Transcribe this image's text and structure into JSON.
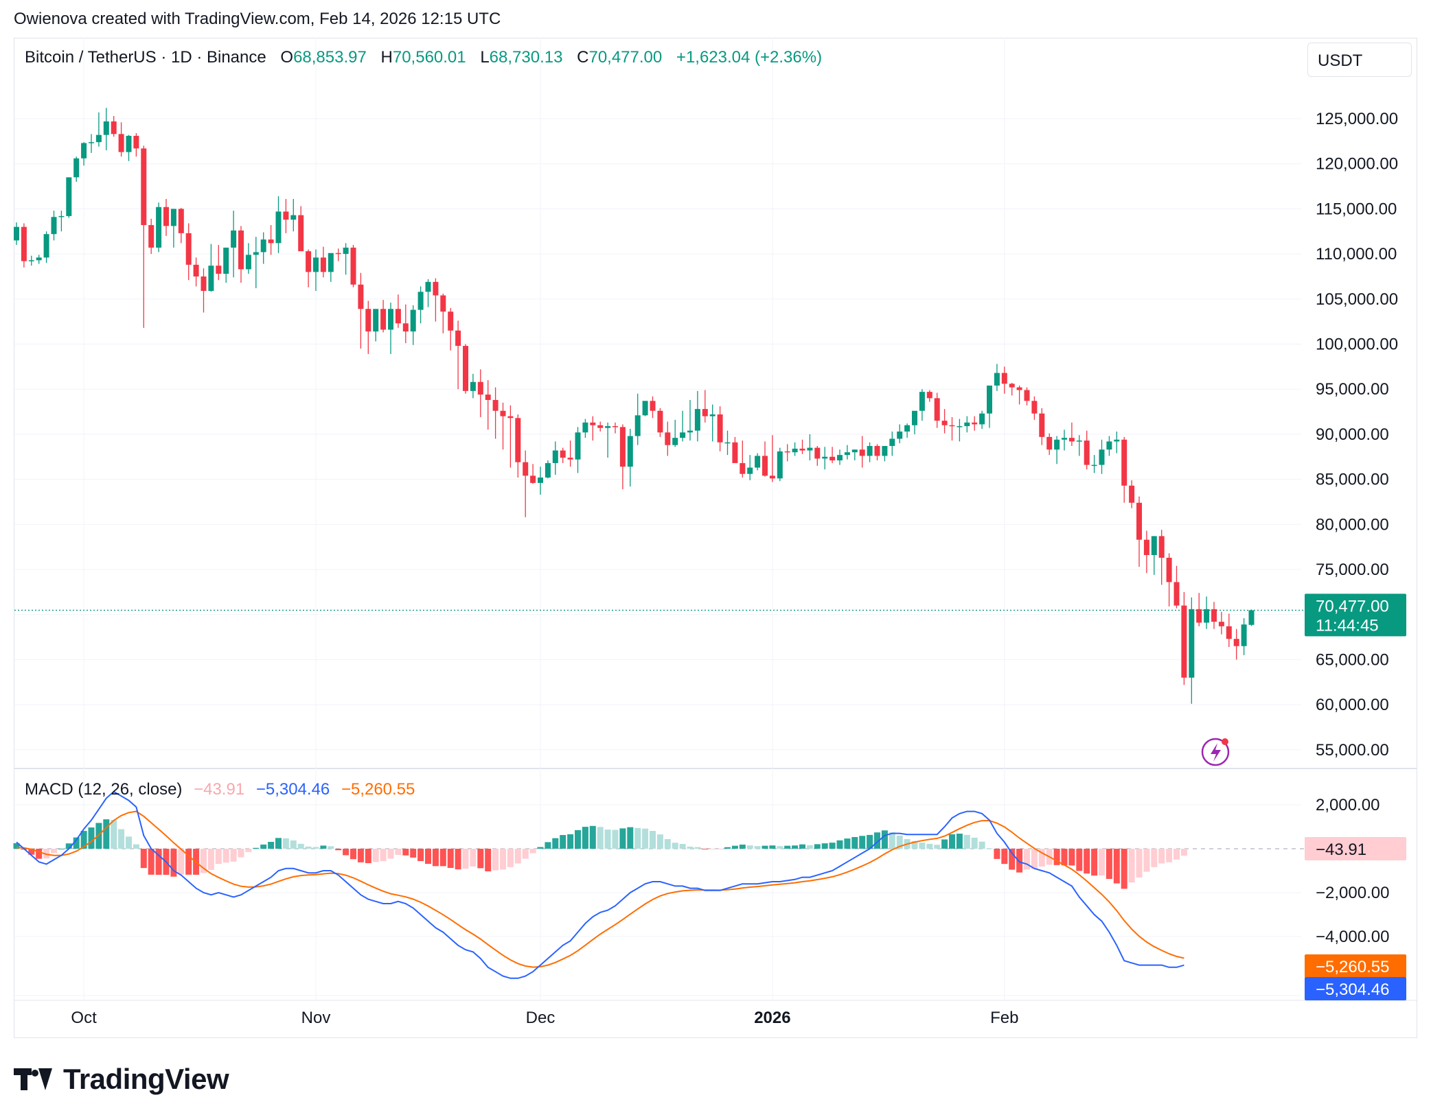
{
  "header": {
    "credit": "Owienova created with TradingView.com, Feb 14, 2026 12:15 UTC"
  },
  "legend": {
    "symbol": "Bitcoin / TetherUS · 1D · Binance",
    "open_label": "O",
    "open": "68,853.97",
    "high_label": "H",
    "high": "70,560.01",
    "low_label": "L",
    "low": "68,730.13",
    "close_label": "C",
    "close": "70,477.00",
    "change": "+1,623.04 (+2.36%)"
  },
  "currency": "USDT",
  "price_badge": {
    "price": "70,477.00",
    "countdown": "11:44:45"
  },
  "macd_legend": {
    "name": "MACD (12, 26, close)",
    "hist": "−43.91",
    "macd": "−5,304.46",
    "signal": "−5,260.55"
  },
  "macd_badges": {
    "hist": "−43.91",
    "signal": "−5,260.55",
    "macd": "−5,304.46"
  },
  "footer": {
    "brand": "TradingView"
  },
  "colors": {
    "up": "#089981",
    "down": "#f23645",
    "macd": "#2962ff",
    "signal": "#ff6d00",
    "hist_up_strong": "#26a69a",
    "hist_up_weak": "#b2dfdb",
    "hist_down_strong": "#ff5252",
    "hist_down_weak": "#ffcdd2"
  },
  "chart_data": [
    {
      "type": "candlestick",
      "title": "Bitcoin / TetherUS · 1D · Binance",
      "x_ticks": [
        "Oct",
        "Nov",
        "Dec",
        "2026",
        "Feb"
      ],
      "y_ticks": [
        "125,000.00",
        "120,000.00",
        "115,000.00",
        "110,000.00",
        "105,000.00",
        "100,000.00",
        "95,000.00",
        "90,000.00",
        "85,000.00",
        "80,000.00",
        "75,000.00",
        "70,000.00",
        "65,000.00",
        "60,000.00",
        "55,000.00"
      ],
      "ylim": [
        55000,
        125000
      ],
      "last_price": 70477,
      "start_date": "2025-09-22",
      "grid": true,
      "candles_ohlc": [
        [
          111500,
          113500,
          111000,
          113000
        ],
        [
          113000,
          113400,
          108500,
          109200
        ],
        [
          109200,
          109800,
          108700,
          109300
        ],
        [
          109300,
          109900,
          108900,
          109600
        ],
        [
          109600,
          112500,
          109000,
          112200
        ],
        [
          112200,
          114800,
          111500,
          114100
        ],
        [
          114100,
          114800,
          112500,
          114200
        ],
        [
          114200,
          118500,
          114000,
          118500
        ],
        [
          118500,
          120800,
          118000,
          120600
        ],
        [
          120600,
          122400,
          119800,
          122300
        ],
        [
          122300,
          123300,
          121200,
          122400
        ],
        [
          122400,
          125700,
          121900,
          123200
        ],
        [
          123200,
          126200,
          121500,
          124700
        ],
        [
          124700,
          125300,
          123000,
          123300
        ],
        [
          123300,
          124600,
          120800,
          121300
        ],
        [
          121300,
          123200,
          120300,
          123100
        ],
        [
          123100,
          123400,
          120800,
          121700
        ],
        [
          121700,
          122000,
          101800,
          113200
        ],
        [
          113200,
          113900,
          110000,
          110700
        ],
        [
          110700,
          115700,
          110200,
          115200
        ],
        [
          115200,
          116100,
          112000,
          113100
        ],
        [
          113100,
          115000,
          110700,
          115000
        ],
        [
          115000,
          115100,
          111200,
          112300
        ],
        [
          112300,
          113400,
          107100,
          108800
        ],
        [
          108800,
          109600,
          106400,
          107500
        ],
        [
          107500,
          108400,
          103500,
          105900
        ],
        [
          105900,
          111100,
          105800,
          108700
        ],
        [
          108700,
          111000,
          107100,
          107800
        ],
        [
          107800,
          109500,
          106800,
          110700
        ],
        [
          110700,
          114800,
          107400,
          112600
        ],
        [
          112600,
          113100,
          106800,
          108300
        ],
        [
          108300,
          111200,
          107800,
          109900
        ],
        [
          109900,
          111900,
          106200,
          110200
        ],
        [
          110200,
          112400,
          108900,
          111600
        ],
        [
          111600,
          113200,
          109900,
          111200
        ],
        [
          111200,
          116400,
          110100,
          114700
        ],
        [
          114700,
          116100,
          112300,
          113800
        ],
        [
          113800,
          116100,
          112500,
          114300
        ],
        [
          114300,
          115300,
          110600,
          110300
        ],
        [
          110300,
          110500,
          106300,
          108000
        ],
        [
          108000,
          110500,
          105900,
          109600
        ],
        [
          109600,
          110800,
          107400,
          108000
        ],
        [
          108000,
          109700,
          106900,
          110100
        ],
        [
          110100,
          110600,
          109200,
          110000
        ],
        [
          110000,
          111200,
          107700,
          110700
        ],
        [
          110700,
          111000,
          106300,
          106600
        ],
        [
          106600,
          107900,
          99500,
          103900
        ],
        [
          103900,
          104800,
          98900,
          101400
        ],
        [
          101400,
          103500,
          100300,
          103900
        ],
        [
          103900,
          104900,
          101300,
          101600
        ],
        [
          101600,
          104600,
          98900,
          103900
        ],
        [
          103900,
          105500,
          101800,
          102300
        ],
        [
          102300,
          104400,
          100100,
          101400
        ],
        [
          101400,
          104300,
          99900,
          103800
        ],
        [
          103800,
          106400,
          102300,
          105800
        ],
        [
          105800,
          107200,
          104100,
          106900
        ],
        [
          106900,
          107300,
          102500,
          105400
        ],
        [
          105400,
          105600,
          101200,
          103600
        ],
        [
          103600,
          104000,
          99300,
          101500
        ],
        [
          101500,
          102600,
          95000,
          99800
        ],
        [
          99800,
          100000,
          94500,
          94800
        ],
        [
          94800,
          96700,
          94000,
          95800
        ],
        [
          95800,
          97200,
          91900,
          94400
        ],
        [
          94400,
          96000,
          90500,
          93800
        ],
        [
          93800,
          95200,
          89500,
          92600
        ],
        [
          92600,
          93500,
          88300,
          92000
        ],
        [
          92000,
          93200,
          86300,
          91800
        ],
        [
          91800,
          92200,
          85200,
          86900
        ],
        [
          86900,
          88200,
          80800,
          85400
        ],
        [
          85400,
          86700,
          84500,
          84600
        ],
        [
          84600,
          86400,
          83300,
          85200
        ],
        [
          85200,
          87100,
          85100,
          86800
        ],
        [
          86800,
          89200,
          85500,
          88200
        ],
        [
          88200,
          88500,
          86800,
          87400
        ],
        [
          87400,
          89300,
          86400,
          87200
        ],
        [
          87200,
          90800,
          85700,
          90200
        ],
        [
          90200,
          91700,
          89600,
          91300
        ],
        [
          91300,
          92000,
          89300,
          91000
        ],
        [
          91000,
          91400,
          90300,
          90700
        ],
        [
          90700,
          91300,
          87400,
          90900
        ],
        [
          90900,
          91300,
          90100,
          90800
        ],
        [
          90800,
          91100,
          83900,
          86400
        ],
        [
          86400,
          90600,
          84200,
          89800
        ],
        [
          89800,
          94500,
          88800,
          92100
        ],
        [
          92100,
          93600,
          92000,
          93700
        ],
        [
          93700,
          94200,
          91800,
          92600
        ],
        [
          92600,
          92900,
          89700,
          90200
        ],
        [
          90200,
          91400,
          87600,
          88800
        ],
        [
          88800,
          91600,
          88600,
          89600
        ],
        [
          89600,
          92600,
          89200,
          90200
        ],
        [
          90200,
          93800,
          89300,
          90400
        ],
        [
          90400,
          94800,
          89200,
          92800
        ],
        [
          92800,
          94900,
          91300,
          92000
        ],
        [
          92000,
          93300,
          89200,
          92200
        ],
        [
          92200,
          93100,
          88100,
          89100
        ],
        [
          89100,
          90400,
          87700,
          89100
        ],
        [
          89100,
          89700,
          87000,
          86800
        ],
        [
          86800,
          89300,
          85200,
          85600
        ],
        [
          85600,
          87700,
          84900,
          86300
        ],
        [
          86300,
          87900,
          86000,
          87600
        ],
        [
          87600,
          89200,
          85300,
          85400
        ],
        [
          85400,
          89900,
          84700,
          85100
        ],
        [
          85100,
          88500,
          84800,
          88100
        ],
        [
          88100,
          88900,
          87000,
          88000
        ],
        [
          88000,
          89100,
          87600,
          88400
        ],
        [
          88400,
          89400,
          87800,
          88200
        ],
        [
          88200,
          90000,
          87100,
          88500
        ],
        [
          88500,
          88700,
          86500,
          87300
        ],
        [
          87300,
          88600,
          86100,
          87500
        ],
        [
          87500,
          88600,
          86800,
          87100
        ],
        [
          87100,
          88300,
          86600,
          87700
        ],
        [
          87700,
          88800,
          87200,
          88000
        ],
        [
          88000,
          88300,
          87100,
          88300
        ],
        [
          88300,
          89800,
          86300,
          87600
        ],
        [
          87600,
          89100,
          86900,
          88700
        ],
        [
          88700,
          88900,
          87100,
          87600
        ],
        [
          87600,
          88500,
          87000,
          88700
        ],
        [
          88700,
          90300,
          87600,
          89500
        ],
        [
          89500,
          91100,
          89000,
          90300
        ],
        [
          90300,
          91200,
          89600,
          91000
        ],
        [
          91000,
          91600,
          90000,
          92600
        ],
        [
          92600,
          95000,
          91500,
          94700
        ],
        [
          94700,
          94900,
          93600,
          94000
        ],
        [
          94000,
          94600,
          90700,
          91500
        ],
        [
          91500,
          92800,
          90100,
          91000
        ],
        [
          91000,
          91900,
          89300,
          90900
        ],
        [
          90900,
          91700,
          89200,
          90900
        ],
        [
          90900,
          92000,
          90200,
          91300
        ],
        [
          91300,
          92000,
          90400,
          91100
        ],
        [
          91100,
          92600,
          90600,
          92300
        ],
        [
          92300,
          95200,
          90700,
          95400
        ],
        [
          95400,
          97800,
          94800,
          96800
        ],
        [
          96800,
          97500,
          94500,
          95600
        ],
        [
          95600,
          95700,
          94300,
          95200
        ],
        [
          95200,
          95400,
          93300,
          94900
        ],
        [
          94900,
          95200,
          93200,
          93700
        ],
        [
          93700,
          94200,
          91600,
          92300
        ],
        [
          92300,
          92900,
          88800,
          89700
        ],
        [
          89700,
          90100,
          87700,
          88300
        ],
        [
          88300,
          89800,
          86700,
          89400
        ],
        [
          89400,
          90500,
          88200,
          89600
        ],
        [
          89600,
          91300,
          88700,
          89200
        ],
        [
          89200,
          89900,
          87600,
          89300
        ],
        [
          89300,
          90400,
          86100,
          86600
        ],
        [
          86600,
          87700,
          85700,
          86600
        ],
        [
          86600,
          89400,
          85600,
          88300
        ],
        [
          88300,
          89800,
          87600,
          89200
        ],
        [
          89200,
          90300,
          87900,
          89400
        ],
        [
          89400,
          89700,
          82400,
          84300
        ],
        [
          84300,
          84900,
          81800,
          82400
        ],
        [
          82400,
          83100,
          75300,
          78300
        ],
        [
          78300,
          79300,
          74600,
          76600
        ],
        [
          76600,
          78700,
          74400,
          78700
        ],
        [
          78700,
          79400,
          73300,
          76300
        ],
        [
          76300,
          76800,
          70900,
          73600
        ],
        [
          73600,
          75400,
          70700,
          71000
        ],
        [
          71000,
          72500,
          62200,
          63000
        ],
        [
          63000,
          71900,
          60100,
          70600
        ],
        [
          70600,
          72400,
          68700,
          69100
        ],
        [
          69100,
          72000,
          68400,
          70600
        ],
        [
          70600,
          71400,
          68400,
          69200
        ],
        [
          69200,
          70300,
          67800,
          68700
        ],
        [
          68700,
          70100,
          66400,
          67300
        ],
        [
          67300,
          68400,
          65000,
          66500
        ],
        [
          66500,
          69600,
          65500,
          68900
        ],
        [
          68854,
          70560,
          68730,
          70477
        ]
      ]
    },
    {
      "type": "macd",
      "title": "MACD (12, 26, close)",
      "series_names": [
        "Histogram",
        "MACD",
        "Signal"
      ],
      "y_ticks": [
        "2,000.00",
        "−2,000.00",
        "−4,000.00"
      ],
      "ylim": [
        -6000,
        2800
      ],
      "macd_values": [
        300,
        0,
        -300,
        -600,
        -700,
        -500,
        -300,
        0,
        400,
        900,
        1300,
        1800,
        2300,
        2600,
        2400,
        2200,
        1900,
        600,
        0,
        -300,
        -600,
        -1000,
        -1200,
        -1500,
        -1800,
        -2000,
        -2100,
        -2000,
        -2100,
        -2200,
        -2100,
        -1900,
        -1700,
        -1500,
        -1300,
        -1000,
        -900,
        -900,
        -1000,
        -1100,
        -1100,
        -1000,
        -1000,
        -1200,
        -1500,
        -1800,
        -2100,
        -2300,
        -2400,
        -2500,
        -2500,
        -2400,
        -2500,
        -2700,
        -3000,
        -3300,
        -3600,
        -3800,
        -4100,
        -4400,
        -4600,
        -4700,
        -5000,
        -5400,
        -5600,
        -5800,
        -5900,
        -5900,
        -5800,
        -5600,
        -5300,
        -5000,
        -4700,
        -4400,
        -4200,
        -3800,
        -3400,
        -3100,
        -2900,
        -2800,
        -2600,
        -2300,
        -2000,
        -1800,
        -1600,
        -1500,
        -1500,
        -1600,
        -1700,
        -1700,
        -1800,
        -1800,
        -1900,
        -1900,
        -1900,
        -1800,
        -1700,
        -1600,
        -1600,
        -1600,
        -1550,
        -1500,
        -1500,
        -1450,
        -1400,
        -1300,
        -1300,
        -1200,
        -1100,
        -1000,
        -800,
        -600,
        -400,
        -200,
        0,
        300,
        600,
        700,
        700,
        650,
        650,
        650,
        650,
        650,
        1000,
        1400,
        1600,
        1700,
        1700,
        1600,
        1300,
        700,
        300,
        -200,
        -600,
        -700,
        -900,
        -1000,
        -1100,
        -1300,
        -1500,
        -1700,
        -2200,
        -2600,
        -3000,
        -3300,
        -3800,
        -4400,
        -5100,
        -5200,
        -5300,
        -5300,
        -5300,
        -5300,
        -5400,
        -5400,
        -5304
      ]
    }
  ]
}
